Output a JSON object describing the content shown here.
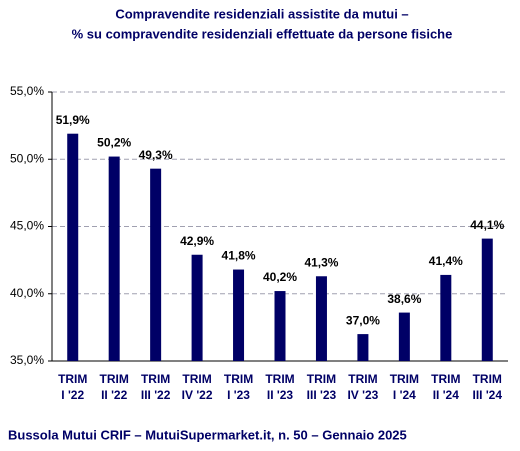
{
  "chart_data": {
    "type": "bar",
    "title": [
      "Compravendite residenziali assistite da mutui –",
      "% su compravendite residenziali effettuate da persone fisiche"
    ],
    "source": "Bussola Mutui CRIF – MutuiSupermarket.it, n. 50 – Gennaio 2025",
    "categories": [
      [
        "TRIM",
        "I '22"
      ],
      [
        "TRIM",
        "II '22"
      ],
      [
        "TRIM",
        "III '22"
      ],
      [
        "TRIM",
        "IV '22"
      ],
      [
        "TRIM",
        "I '23"
      ],
      [
        "TRIM",
        "II '23"
      ],
      [
        "TRIM",
        "III '23"
      ],
      [
        "TRIM",
        "IV '23"
      ],
      [
        "TRIM",
        "I '24"
      ],
      [
        "TRIM",
        "II '24"
      ],
      [
        "TRIM",
        "III '24"
      ]
    ],
    "values": [
      51.9,
      50.2,
      49.3,
      42.9,
      41.8,
      40.2,
      41.3,
      37.0,
      38.6,
      41.4,
      44.1
    ],
    "value_labels": [
      "51,9%",
      "50,2%",
      "49,3%",
      "42,9%",
      "41,8%",
      "40,2%",
      "41,3%",
      "37,0%",
      "38,6%",
      "41,4%",
      "44,1%"
    ],
    "color": "#000066",
    "ylim": [
      35,
      55
    ],
    "yticks": [
      {
        "value": 35,
        "label": "35,0%"
      },
      {
        "value": 40,
        "label": "40,0%"
      },
      {
        "value": 45,
        "label": "45,0%"
      },
      {
        "value": 50,
        "label": "50,0%"
      },
      {
        "value": 55,
        "label": "55,0%"
      }
    ],
    "grid": true
  }
}
